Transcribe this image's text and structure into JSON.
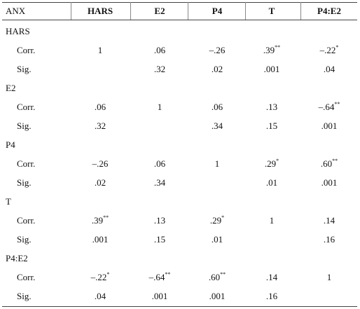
{
  "table": {
    "header": [
      "ANX",
      "HARS",
      "E2",
      "P4",
      "T",
      "P4:E2"
    ],
    "groups": [
      {
        "label": "HARS",
        "rows": [
          {
            "label": "Corr.",
            "cells": [
              "1",
              ".06",
              "–.26",
              {
                "text": ".39",
                "sup": "**"
              },
              {
                "text": "–.22",
                "sup": "*"
              }
            ]
          },
          {
            "label": "Sig.",
            "cells": [
              null,
              ".32",
              ".02",
              ".001",
              ".04"
            ]
          }
        ]
      },
      {
        "label": "E2",
        "rows": [
          {
            "label": "Corr.",
            "cells": [
              ".06",
              "1",
              ".06",
              ".13",
              {
                "text": "–.64",
                "sup": "**"
              }
            ]
          },
          {
            "label": "Sig.",
            "cells": [
              ".32",
              null,
              ".34",
              ".15",
              ".001"
            ]
          }
        ]
      },
      {
        "label": "P4",
        "rows": [
          {
            "label": "Corr.",
            "cells": [
              "–.26",
              ".06",
              "1",
              {
                "text": ".29",
                "sup": "*"
              },
              {
                "text": ".60",
                "sup": "**"
              }
            ]
          },
          {
            "label": "Sig.",
            "cells": [
              ".02",
              ".34",
              null,
              ".01",
              ".001"
            ]
          }
        ]
      },
      {
        "label": "T",
        "rows": [
          {
            "label": "Corr.",
            "cells": [
              {
                "text": ".39",
                "sup": "**"
              },
              ".13",
              {
                "text": ".29",
                "sup": "*"
              },
              "1",
              ".14"
            ]
          },
          {
            "label": "Sig.",
            "cells": [
              ".001",
              ".15",
              ".01",
              null,
              ".16"
            ]
          }
        ]
      },
      {
        "label": "P4:E2",
        "rows": [
          {
            "label": "Corr.",
            "cells": [
              {
                "text": "–.22",
                "sup": "*"
              },
              {
                "text": "–.64",
                "sup": "**"
              },
              {
                "text": ".60",
                "sup": "**"
              },
              ".14",
              "1"
            ]
          },
          {
            "label": "Sig.",
            "cells": [
              ".04",
              ".001",
              ".001",
              ".16",
              null
            ]
          }
        ]
      }
    ]
  }
}
